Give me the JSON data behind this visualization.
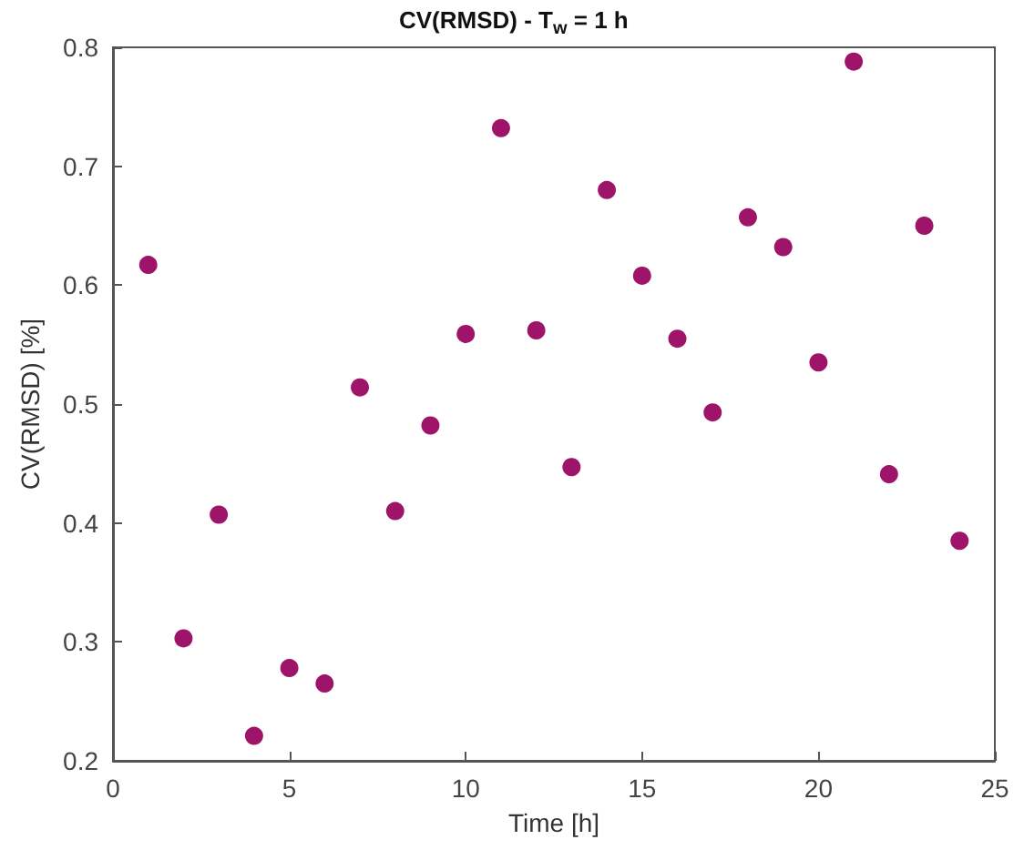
{
  "chart_data": {
    "type": "scatter",
    "title": "CV(RMSD) - T$_{w}$ = 1 h",
    "xlabel": "Time [h]",
    "ylabel": "CV(RMSD) [%]",
    "x": [
      1,
      2,
      3,
      4,
      5,
      6,
      7,
      8,
      9,
      10,
      11,
      12,
      13,
      14,
      15,
      16,
      17,
      18,
      19,
      20,
      21,
      22,
      23,
      24
    ],
    "series": [
      {
        "color": "#9e1468",
        "values": [
          0.617,
          0.303,
          0.407,
          0.221,
          0.278,
          0.265,
          0.514,
          0.41,
          0.482,
          0.559,
          0.732,
          0.562,
          0.447,
          0.68,
          0.608,
          0.555,
          0.493,
          0.657,
          0.632,
          0.535,
          0.788,
          0.441,
          0.65,
          0.385
        ]
      }
    ],
    "xlim": [
      0,
      25
    ],
    "xticks": [
      0,
      5,
      10,
      15,
      20,
      25
    ],
    "ylim": [
      0.2,
      0.8
    ],
    "yticks": [
      0.2,
      0.3,
      0.4,
      0.5,
      0.6,
      0.7,
      0.8
    ],
    "grid": false,
    "marker": "circle"
  }
}
